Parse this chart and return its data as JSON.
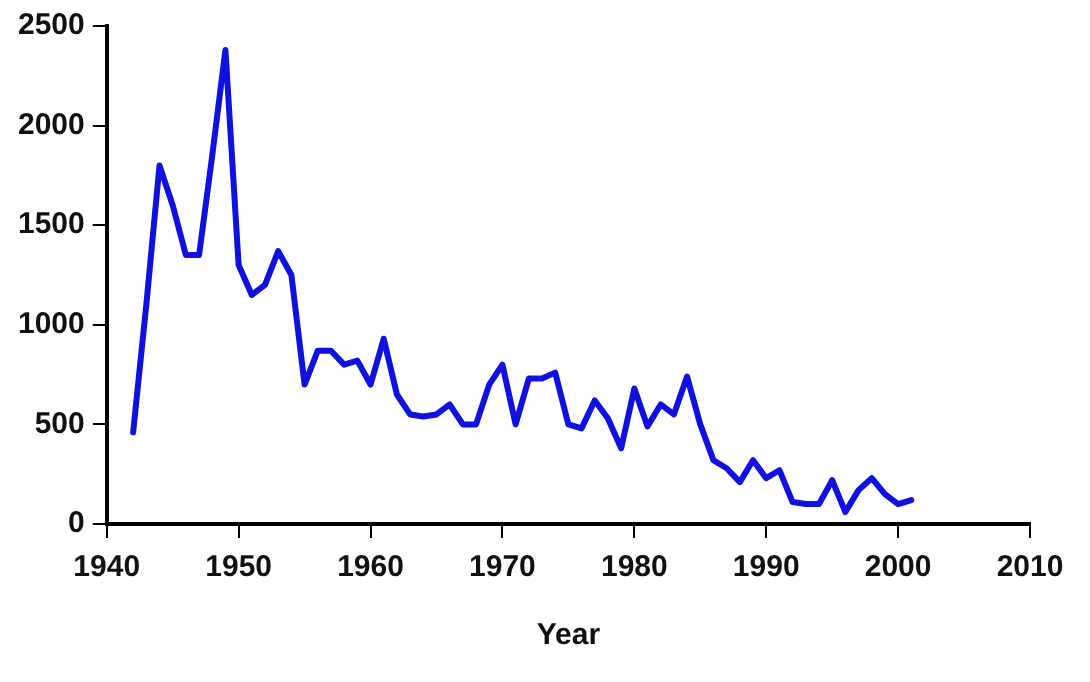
{
  "chart_data": {
    "type": "line",
    "xlabel": "Year",
    "x": [
      1942,
      1943,
      1944,
      1945,
      1946,
      1947,
      1948,
      1949,
      1950,
      1951,
      1952,
      1953,
      1954,
      1955,
      1956,
      1957,
      1958,
      1959,
      1960,
      1961,
      1962,
      1963,
      1964,
      1965,
      1966,
      1967,
      1968,
      1969,
      1970,
      1971,
      1972,
      1973,
      1974,
      1975,
      1976,
      1977,
      1978,
      1979,
      1980,
      1981,
      1982,
      1983,
      1984,
      1985,
      1986,
      1987,
      1988,
      1989,
      1990,
      1991,
      1992,
      1993,
      1994,
      1995,
      1996,
      1997,
      1998,
      1999,
      2000,
      2001
    ],
    "series": [
      {
        "color": "#1010e0",
        "values": [
          460,
          1100,
          1800,
          1600,
          1350,
          1350,
          1850,
          2380,
          1300,
          1150,
          1200,
          1370,
          1250,
          700,
          870,
          870,
          800,
          820,
          700,
          930,
          650,
          550,
          540,
          550,
          600,
          500,
          500,
          700,
          800,
          500,
          730,
          730,
          760,
          500,
          480,
          620,
          530,
          380,
          680,
          490,
          600,
          550,
          740,
          500,
          320,
          280,
          210,
          320,
          230,
          270,
          110,
          100,
          100,
          220,
          60,
          170,
          230,
          150,
          100,
          120
        ]
      }
    ],
    "xlim": [
      1940,
      2010
    ],
    "xticks": [
      1940,
      1950,
      1960,
      1970,
      1980,
      1990,
      2000,
      2010
    ],
    "ylim": [
      0,
      2500
    ],
    "yticks": [
      0,
      500,
      1000,
      1500,
      2000,
      2500
    ],
    "grid": false,
    "legend": false,
    "marker": "none",
    "line_style": "solid"
  }
}
